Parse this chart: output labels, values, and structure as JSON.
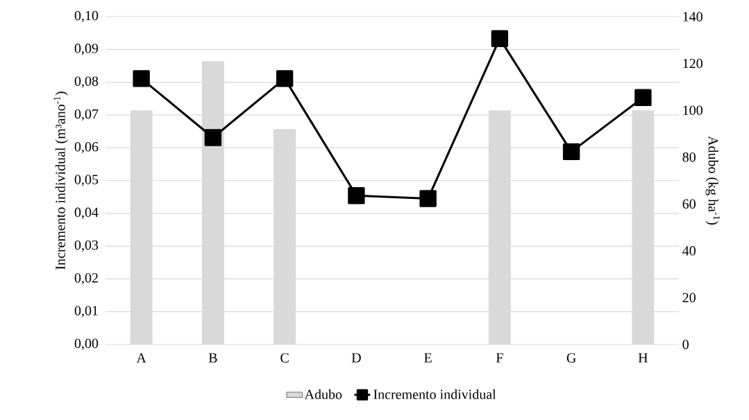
{
  "chart_data": {
    "type": "bar",
    "categories": [
      "A",
      "B",
      "C",
      "D",
      "E",
      "F",
      "G",
      "H"
    ],
    "ylabel": "Incremento individual (m³ano$^{-1}$)",
    "y2label": "Adubo (kg ha$^{-1}$)",
    "series": [
      {
        "name": "Adubo",
        "axis": "y2",
        "color": "#d9d9d9",
        "values": [
          100,
          121,
          92,
          null,
          null,
          100,
          null,
          100
        ]
      },
      {
        "name": "Incremento individual",
        "type": "line",
        "color": "#000000",
        "marker": "square",
        "line_style": "solid",
        "values": [
          0.0811,
          0.0631,
          0.0811,
          0.0454,
          0.0445,
          0.0933,
          0.0588,
          0.0753
        ]
      }
    ],
    "ylim": [
      0,
      0.1
    ],
    "yticks": [
      {
        "value": 0,
        "label": "0,00"
      },
      {
        "value": 0.01,
        "label": "0,01"
      },
      {
        "value": 0.02,
        "label": "0,02"
      },
      {
        "value": 0.03,
        "label": "0,03"
      },
      {
        "value": 0.04,
        "label": "0,04"
      },
      {
        "value": 0.05,
        "label": "0,05"
      },
      {
        "value": 0.06,
        "label": "0,06"
      },
      {
        "value": 0.07,
        "label": "0,07"
      },
      {
        "value": 0.08,
        "label": "0,08"
      },
      {
        "value": 0.09,
        "label": "0,09"
      },
      {
        "value": 0.1,
        "label": "0,10"
      }
    ],
    "y2lim": [
      0,
      140
    ],
    "y2ticks": [
      0,
      20,
      40,
      60,
      80,
      100,
      120,
      140
    ],
    "grid": "y",
    "legend": "bottom"
  }
}
